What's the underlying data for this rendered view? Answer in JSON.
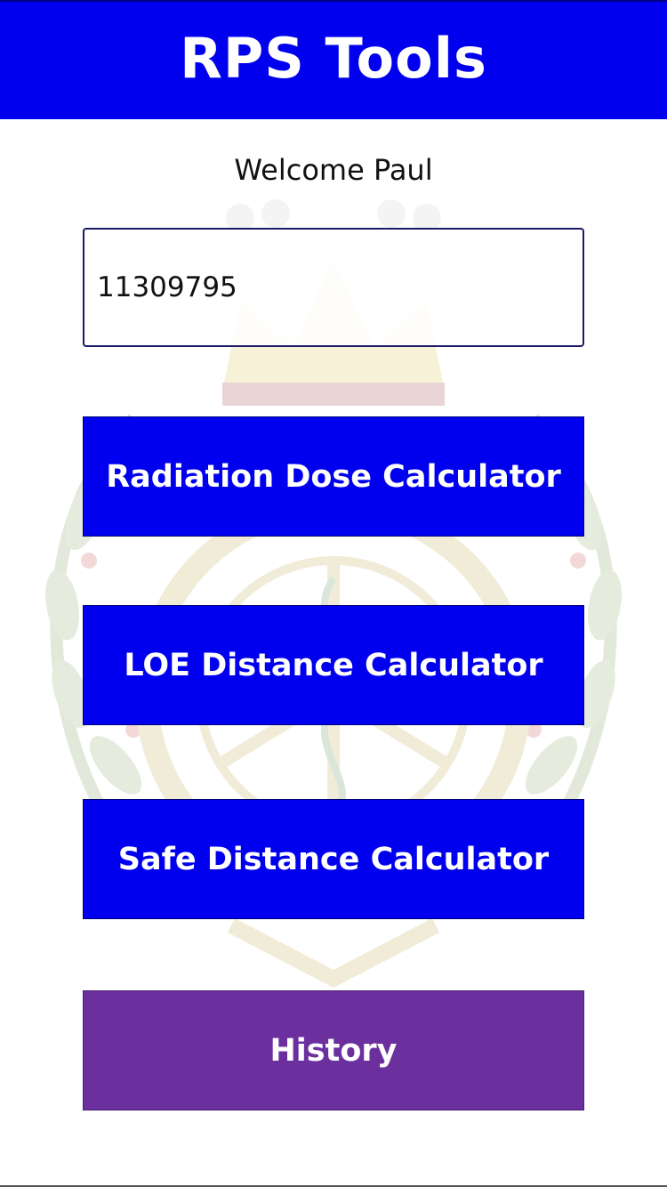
{
  "header": {
    "title": "RPS Tools"
  },
  "welcome_text": "Welcome Paul",
  "id_field": {
    "value": "11309795"
  },
  "buttons": {
    "dose": "Radiation Dose Calculator",
    "loe": "LOE Distance Calculator",
    "safe": "Safe Distance Calculator",
    "history": "History"
  },
  "background": {
    "icon": "crest-emblem-watermark"
  },
  "colors": {
    "primary": "#0000ee",
    "history": "#6b2f9e",
    "text": "#111111"
  }
}
